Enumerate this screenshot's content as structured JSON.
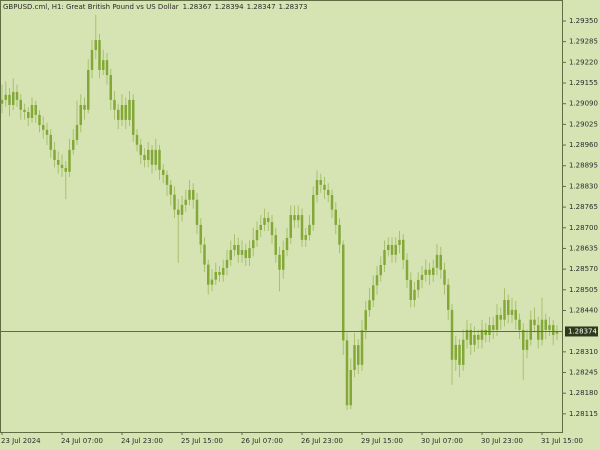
{
  "chart_data": {
    "type": "candlestick",
    "title": "GBPUSD.cml, H1:  Great British Pound vs US Dollar",
    "categories": [
      "23 Jul 2024",
      null,
      null,
      null,
      null,
      null,
      null,
      null,
      null,
      null,
      null,
      null,
      null,
      null,
      null,
      null,
      "24 Jul 07:00",
      null,
      null,
      null,
      null,
      null,
      null,
      null,
      null,
      null,
      null,
      null,
      null,
      null,
      null,
      null,
      "24 Jul 23:00",
      null,
      null,
      null,
      null,
      null,
      null,
      null,
      null,
      null,
      null,
      null,
      null,
      null,
      null,
      null,
      "25 Jul 15:00",
      null,
      null,
      null,
      null,
      null,
      null,
      null,
      null,
      null,
      null,
      null,
      null,
      null,
      null,
      null,
      "26 Jul 07:00",
      null,
      null,
      null,
      null,
      null,
      null,
      null,
      null,
      null,
      null,
      null,
      null,
      null,
      null,
      null,
      "26 Jul 23:00",
      null,
      null,
      null,
      null,
      null,
      null,
      null,
      null,
      null,
      null,
      null,
      null,
      null,
      null,
      null,
      "29 Jul 15:00",
      null,
      null,
      null,
      null,
      null,
      null,
      null,
      null,
      null,
      null,
      null,
      null,
      null,
      null,
      null,
      "30 Jul 07:00",
      null,
      null,
      null,
      null,
      null,
      null,
      null,
      null,
      null,
      null,
      null,
      null,
      null,
      null,
      null,
      "30 Jul 23:00",
      null,
      null,
      null,
      null,
      null,
      null,
      null,
      null,
      null,
      null,
      null,
      null,
      null,
      null,
      null,
      "31 Jul 15:00",
      null,
      null,
      null,
      null
    ],
    "open": [
      1.2909,
      1.29102,
      1.29118,
      1.29086,
      1.29127,
      1.29102,
      1.29071,
      1.29064,
      1.29045,
      1.29086,
      1.29055,
      1.29023,
      1.29008,
      1.28992,
      1.28945,
      1.28913,
      1.28898,
      1.28888,
      1.28876,
      1.28945,
      1.28976,
      1.29023,
      1.29086,
      1.29071,
      1.29196,
      1.29259,
      1.2929,
      1.29196,
      1.29227,
      1.2918,
      1.29102,
      1.29071,
      1.29039,
      1.29086,
      1.29039,
      1.29102,
      1.28992,
      1.28961,
      1.28929,
      1.28913,
      1.28945,
      1.28898,
      1.28945,
      1.28882,
      1.28866,
      1.28835,
      1.28804,
      1.28757,
      1.28741,
      1.28772,
      1.28788,
      1.28819,
      1.28788,
      1.28709,
      1.28647,
      1.28584,
      1.28521,
      1.28537,
      1.28561,
      1.28552,
      1.28574,
      1.28599,
      1.2863,
      1.28646,
      1.28615,
      1.2863,
      1.28605,
      1.28636,
      1.28661,
      1.28693,
      1.28709,
      1.28731,
      1.28718,
      1.28677,
      1.28615,
      1.28568,
      1.2863,
      1.28668,
      1.2874,
      1.28724,
      1.2874,
      1.28662,
      1.28677,
      1.28709,
      1.28803,
      1.2885,
      1.28835,
      1.28819,
      1.28803,
      1.28757,
      1.28709,
      1.28647,
      1.28346,
      1.28142,
      1.28253,
      1.28331,
      1.28269,
      1.28378,
      1.28441,
      1.28472,
      1.28519,
      1.28551,
      1.28583,
      1.2863,
      1.28646,
      1.28615,
      1.28646,
      1.28662,
      1.28599,
      1.28536,
      1.28473,
      1.28505,
      1.28536,
      1.28552,
      1.28568,
      1.28552,
      1.28574,
      1.28615,
      1.28568,
      1.28521,
      1.28442,
      1.28285,
      1.28332,
      1.28269,
      1.28348,
      1.28379,
      1.28332,
      1.28363,
      1.28348,
      1.28379,
      1.28363,
      1.28394,
      1.28379,
      1.28426,
      1.28411,
      1.28473,
      1.28426,
      1.28442,
      1.28411,
      1.28379,
      1.28316,
      1.28348,
      1.28411,
      1.28394,
      1.28348,
      1.28411,
      1.28379,
      1.28394,
      1.28367
    ],
    "high": [
      1.2915,
      1.2916,
      1.2914,
      1.2917,
      1.2915,
      1.2912,
      1.2909,
      1.2908,
      1.2911,
      1.291,
      1.2907,
      1.2905,
      1.2903,
      1.2901,
      1.2897,
      1.2894,
      1.2893,
      1.2891,
      1.2898,
      1.2901,
      1.291,
      1.2912,
      1.2911,
      1.2923,
      1.2929,
      1.29369,
      1.2931,
      1.2926,
      1.2925,
      1.292,
      1.2913,
      1.2909,
      1.2912,
      1.2911,
      1.2913,
      1.2912,
      1.2901,
      1.2898,
      1.2895,
      1.2897,
      1.2896,
      1.2898,
      1.2896,
      1.289,
      1.2888,
      1.2885,
      1.2883,
      1.2879,
      1.288,
      1.2882,
      1.2885,
      1.2884,
      1.2881,
      1.2873,
      1.2867,
      1.286,
      1.2857,
      1.2859,
      1.2858,
      1.286,
      1.2863,
      1.2866,
      1.2868,
      1.2867,
      1.2866,
      1.2865,
      1.2866,
      1.287,
      1.2872,
      1.2874,
      1.2876,
      1.2875,
      1.2874,
      1.287,
      1.2864,
      1.2866,
      1.287,
      1.2877,
      1.2877,
      1.2877,
      1.2876,
      1.287,
      1.2874,
      1.2883,
      1.28881,
      1.2887,
      1.2886,
      1.2884,
      1.2882,
      1.2878,
      1.2873,
      1.2866,
      1.2837,
      1.2829,
      1.2837,
      1.2835,
      1.2841,
      1.2847,
      1.2851,
      1.2855,
      1.2858,
      1.2861,
      1.2866,
      1.2867,
      1.2867,
      1.2867,
      1.2869,
      1.2868,
      1.2862,
      1.2856,
      1.2853,
      1.2856,
      1.2858,
      1.286,
      1.2859,
      1.286,
      1.2865,
      1.2864,
      1.2859,
      1.2854,
      1.2846,
      1.2836,
      1.2835,
      1.2838,
      1.2841,
      1.284,
      1.2839,
      1.2838,
      1.2841,
      1.284,
      1.2842,
      1.2842,
      1.2846,
      1.2845,
      1.2851,
      1.2849,
      1.2848,
      1.2847,
      1.2843,
      1.284,
      1.2838,
      1.2844,
      1.2845,
      1.2842,
      1.2848,
      1.2843,
      1.2842,
      1.2841,
      1.28394
    ],
    "low": [
      1.2906,
      1.2908,
      1.2905,
      1.2907,
      1.2908,
      1.2904,
      1.2904,
      1.2902,
      1.2903,
      1.2903,
      1.29,
      1.2898,
      1.2896,
      1.2892,
      1.2889,
      1.2887,
      1.2886,
      1.2879,
      1.2886,
      1.2893,
      1.2896,
      1.29,
      1.2904,
      1.2906,
      1.2917,
      1.2923,
      1.2917,
      1.2918,
      1.2915,
      1.2907,
      1.2904,
      1.2901,
      1.2902,
      1.2901,
      1.2902,
      1.2897,
      1.2894,
      1.289,
      1.2889,
      1.2889,
      1.2887,
      1.2888,
      1.2885,
      1.2884,
      1.288,
      1.2877,
      1.2873,
      1.2859,
      1.2872,
      1.2875,
      1.2877,
      1.2876,
      1.2868,
      1.2862,
      1.2856,
      1.2849,
      1.285,
      1.2852,
      1.2853,
      1.2853,
      1.2855,
      1.2858,
      1.2861,
      1.2859,
      1.2859,
      1.2858,
      1.2858,
      1.2861,
      1.2864,
      1.2867,
      1.2869,
      1.2869,
      1.2865,
      1.2859,
      1.285,
      1.2854,
      1.2861,
      1.2865,
      1.287,
      1.287,
      1.2864,
      1.2864,
      1.2866,
      1.2869,
      1.2878,
      1.2881,
      1.2879,
      1.2878,
      1.2873,
      1.2868,
      1.2862,
      1.283,
      1.28127,
      1.2813,
      1.2823,
      1.2824,
      1.2825,
      1.2835,
      1.2842,
      1.2845,
      1.2849,
      1.2853,
      1.2856,
      1.2861,
      1.2859,
      1.2859,
      1.2862,
      1.2857,
      1.2851,
      1.2845,
      1.2845,
      1.2848,
      1.2851,
      1.2853,
      1.2852,
      1.2853,
      1.2855,
      1.2854,
      1.2849,
      1.2841,
      1.28206,
      1.2825,
      1.2823,
      1.2825,
      1.2832,
      1.283,
      1.2831,
      1.2832,
      1.2832,
      1.2834,
      1.2834,
      1.2835,
      1.2836,
      1.2838,
      1.2839,
      1.284,
      1.284,
      1.2838,
      1.2835,
      1.28222,
      1.2829,
      1.2833,
      1.2837,
      1.2832,
      1.2833,
      1.2835,
      1.2836,
      1.2833,
      1.28347
    ],
    "close": [
      1.29102,
      1.29118,
      1.29086,
      1.29127,
      1.29102,
      1.29071,
      1.29064,
      1.29045,
      1.29086,
      1.29055,
      1.29023,
      1.29008,
      1.28992,
      1.28945,
      1.28913,
      1.28898,
      1.28888,
      1.28876,
      1.28945,
      1.28976,
      1.29023,
      1.29086,
      1.29071,
      1.29196,
      1.29259,
      1.2929,
      1.29196,
      1.29227,
      1.2918,
      1.29102,
      1.29071,
      1.29039,
      1.29086,
      1.29039,
      1.29102,
      1.28992,
      1.28961,
      1.28929,
      1.28913,
      1.28945,
      1.28898,
      1.28945,
      1.28882,
      1.28866,
      1.28835,
      1.28804,
      1.28757,
      1.28741,
      1.28772,
      1.28788,
      1.28819,
      1.28788,
      1.28709,
      1.28647,
      1.28584,
      1.28521,
      1.28537,
      1.28561,
      1.28552,
      1.28574,
      1.28599,
      1.2863,
      1.28646,
      1.28615,
      1.2863,
      1.28605,
      1.28636,
      1.28661,
      1.28693,
      1.28709,
      1.28731,
      1.28718,
      1.28677,
      1.28615,
      1.28568,
      1.2863,
      1.28668,
      1.2874,
      1.28724,
      1.2874,
      1.28662,
      1.28677,
      1.28709,
      1.28803,
      1.2885,
      1.28835,
      1.28819,
      1.28803,
      1.28757,
      1.28709,
      1.28647,
      1.28346,
      1.28142,
      1.28253,
      1.28331,
      1.28269,
      1.28378,
      1.28441,
      1.28472,
      1.28519,
      1.28551,
      1.28583,
      1.2863,
      1.28646,
      1.28615,
      1.28646,
      1.28662,
      1.28599,
      1.28536,
      1.28473,
      1.28505,
      1.28536,
      1.28552,
      1.28568,
      1.28552,
      1.28574,
      1.28615,
      1.28568,
      1.28521,
      1.28442,
      1.28285,
      1.28332,
      1.28269,
      1.28348,
      1.28379,
      1.28332,
      1.28363,
      1.28348,
      1.28379,
      1.28363,
      1.28394,
      1.28379,
      1.28426,
      1.28411,
      1.28473,
      1.28426,
      1.28442,
      1.28411,
      1.28379,
      1.28316,
      1.28348,
      1.28411,
      1.28394,
      1.28348,
      1.28411,
      1.28379,
      1.28394,
      1.28363,
      1.28373
    ],
    "ylim": [
      1.28058,
      1.29416
    ],
    "yticks": [
      {
        "value": 1.2935,
        "label": "1.29350"
      },
      1.29285,
      {
        "value": 1.2922,
        "label": "1.29220"
      },
      1.29155,
      {
        "value": 1.2909,
        "label": "1.29090"
      },
      1.29025,
      {
        "value": 1.2896,
        "label": "1.28960"
      },
      1.28895,
      {
        "value": 1.2883,
        "label": "1.28830"
      },
      1.28765,
      {
        "value": 1.287,
        "label": "1.28700"
      },
      1.28635,
      {
        "value": 1.2857,
        "label": "1.28570"
      },
      1.28505,
      {
        "value": 1.2844,
        "label": "1.28440"
      },
      {
        "value": 1.2831,
        "label": "1.28310"
      },
      1.28245,
      {
        "value": 1.2818,
        "label": "1.28180"
      },
      1.28115
    ],
    "current_price": 1.28374,
    "color": "#83a838",
    "wick_color": "#a9c16e",
    "background": "#d6e4b4"
  }
}
